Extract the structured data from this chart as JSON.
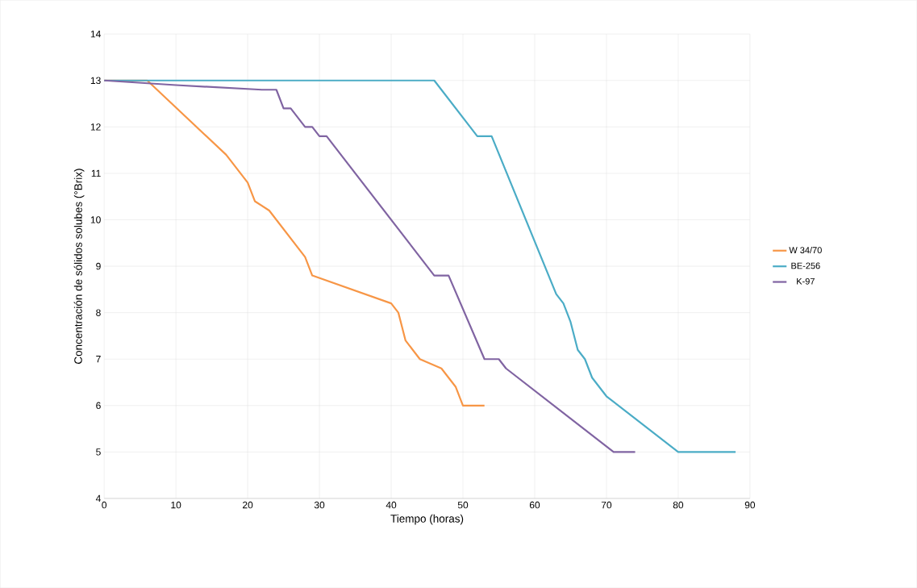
{
  "chart_data": {
    "type": "line",
    "xlabel": "Tiempo (horas)",
    "ylabel": "Concentración de sólidos solubes (°Brix)",
    "xlim": [
      0,
      90
    ],
    "xticks": [
      0,
      10,
      20,
      30,
      40,
      50,
      60,
      70,
      80,
      90
    ],
    "ylim": [
      4,
      14
    ],
    "yticks": [
      4,
      5,
      6,
      7,
      8,
      9,
      10,
      11,
      12,
      13,
      14
    ],
    "grid": true,
    "legend": "right",
    "marker": "none",
    "line_style": "solid",
    "series": [
      {
        "name": "W 34/70",
        "color": "#f79646",
        "x": [
          0,
          6,
          17,
          20,
          21,
          23,
          28,
          29,
          40,
          41,
          42,
          44,
          47,
          49,
          50,
          53
        ],
        "values": [
          13,
          13,
          11.4,
          10.8,
          10.4,
          10.2,
          9.2,
          8.8,
          8.2,
          8,
          7.4,
          7,
          6.8,
          6.4,
          6,
          6
        ]
      },
      {
        "name": "BE-256",
        "color": "#4bacc6",
        "x": [
          0,
          46,
          52,
          54,
          63,
          64,
          65,
          66,
          67,
          68,
          70,
          80,
          88
        ],
        "values": [
          13,
          13,
          11.8,
          11.8,
          8.4,
          8.2,
          7.8,
          7.2,
          7,
          6.6,
          6.2,
          5,
          5
        ]
      },
      {
        "name": "K-97",
        "color": "#8064a2",
        "x": [
          0,
          10,
          22,
          24,
          25,
          26,
          28,
          29,
          30,
          31,
          46,
          48,
          53,
          55,
          56,
          71,
          74
        ],
        "values": [
          13,
          12.9,
          12.8,
          12.8,
          12.4,
          12.4,
          12,
          12,
          11.8,
          11.8,
          8.8,
          8.8,
          7,
          7,
          6.8,
          5,
          5
        ]
      }
    ]
  }
}
